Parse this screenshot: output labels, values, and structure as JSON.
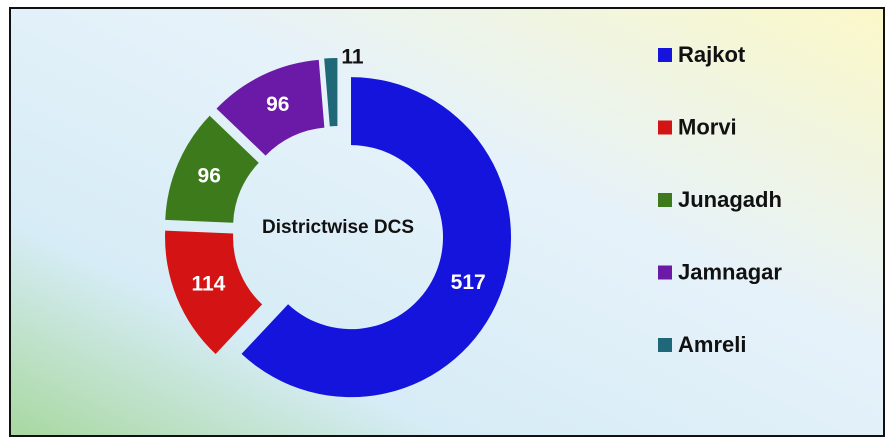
{
  "chart_data": {
    "type": "pie",
    "donut": true,
    "title": "Districtwise DCS",
    "categories": [
      "Rajkot",
      "Morvi",
      "Junagadh",
      "Jamnagar",
      "Amreli"
    ],
    "values": [
      517,
      114,
      96,
      96,
      11
    ],
    "colors": [
      "#1414dc",
      "#d41414",
      "#3c7a1c",
      "#6a1aa6",
      "#1f6878"
    ],
    "legend": "right"
  }
}
